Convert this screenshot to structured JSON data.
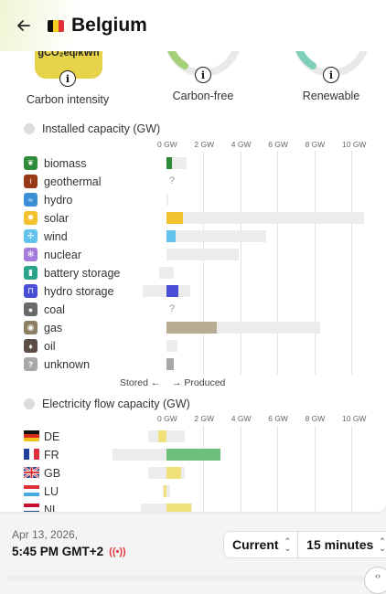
{
  "header": {
    "title": "Belgium"
  },
  "summary": {
    "carbon_unit": "gCO₂eq/kWh",
    "carbon_label": "Carbon intensity",
    "carbon_free_label": "Carbon-free",
    "renewable_label": "Renewable",
    "colors": {
      "carbon": "#e7d34a",
      "carbon_free": "#a5d07a",
      "renewable": "#7dcfb9"
    }
  },
  "installed": {
    "title": "Installed capacity (GW)",
    "axis": [
      "0 GW",
      "2 GW",
      "4 GW",
      "6 GW",
      "8 GW",
      "10 GW"
    ],
    "rows": [
      {
        "label": "biomass",
        "icon": "leaf-icon",
        "color": "#2e8b3a",
        "produced": 0.3,
        "capacity": 1.1
      },
      {
        "label": "geothermal",
        "icon": "heat-waves-icon",
        "color": "#9a3a14",
        "unknown": "?"
      },
      {
        "label": "hydro",
        "icon": "water-waves-icon",
        "color": "#3a8fd6",
        "produced": 0,
        "capacity": 0.1
      },
      {
        "label": "solar",
        "icon": "sun-icon",
        "color": "#f2c12e",
        "produced": 0.9,
        "capacity": 10.7
      },
      {
        "label": "wind",
        "icon": "wind-turbine-icon",
        "color": "#62c4ec",
        "produced": 0.5,
        "capacity": 5.4
      },
      {
        "label": "nuclear",
        "icon": "atom-icon",
        "color": "#a57cdc",
        "produced": 0,
        "capacity": 3.9
      },
      {
        "label": "battery storage",
        "icon": "battery-icon",
        "color": "#29a48a",
        "produced": 0,
        "capacity": 0.4,
        "stored_capacity": 0.4
      },
      {
        "label": "hydro storage",
        "icon": "dam-icon",
        "color": "#4a4ed6",
        "produced": 0.65,
        "capacity": 1.3,
        "stored_capacity": 1.3
      },
      {
        "label": "coal",
        "icon": "coal-drop-icon",
        "color": "#6a6a6a",
        "unknown": "?"
      },
      {
        "label": "gas",
        "icon": "gas-flame-icon",
        "color": "#8c7f62",
        "produced": 2.7,
        "capacity": 8.3
      },
      {
        "label": "oil",
        "icon": "oil-drop-icon",
        "color": "#5c4e47",
        "produced": 0,
        "capacity": 0.6
      },
      {
        "label": "unknown",
        "icon": "question-icon",
        "color": "#a8a8a8",
        "produced": 0.4,
        "capacity": 0.4
      }
    ],
    "stored_label": "Stored",
    "produced_label": "Produced",
    "produced_color": "#b7ac93"
  },
  "flow": {
    "title": "Electricity flow capacity (GW)",
    "axis": [
      "0 GW",
      "2 GW",
      "4 GW",
      "6 GW",
      "8 GW",
      "10 GW"
    ],
    "rows": [
      {
        "label": "DE",
        "flag": "de-flag-icon",
        "flow": -0.45,
        "export_cap": 1.0,
        "import_cap": 1.0,
        "color": "#f0e07a"
      },
      {
        "label": "FR",
        "flag": "fr-flag-icon",
        "flow": 2.9,
        "export_cap": 2.9,
        "import_cap": 2.9,
        "color": "#6cc07a"
      },
      {
        "label": "GB",
        "flag": "gb-flag-icon",
        "flow": 0.8,
        "export_cap": 1.0,
        "import_cap": 1.0,
        "color": "#f0e07a"
      },
      {
        "label": "LU",
        "flag": "lu-flag-icon",
        "flow": -0.15,
        "export_cap": 0.2,
        "import_cap": 0.2,
        "color": "#f0e07a"
      },
      {
        "label": "NL",
        "flag": "nl-flag-icon",
        "flow": 1.35,
        "export_cap": 1.4,
        "import_cap": 1.4,
        "color": "#f0e07a"
      }
    ]
  },
  "footer": {
    "date": "Apr 13, 2026,",
    "time": "5:45 PM GMT+2",
    "mode": "Current",
    "interval": "15 minutes"
  }
}
